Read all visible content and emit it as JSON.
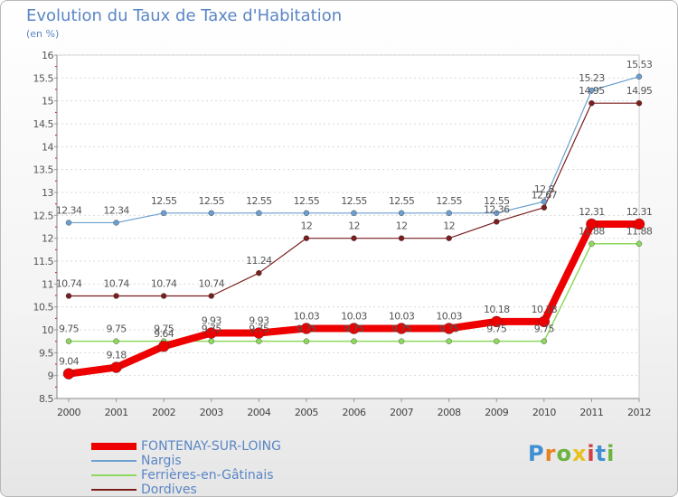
{
  "header": {
    "title": "Evolution du Taux de Taxe d'Habitation",
    "subtitle": "(en %)"
  },
  "colors": {
    "FONTENAY-SUR-LOING": "#ee0000",
    "Nargis": "#6a9fd0",
    "Ferrières-en-Gâtinais": "#8ed85e",
    "Dordives": "#7a1e1e"
  },
  "logo": {
    "letters": [
      "P",
      "r",
      "o",
      "x",
      "i",
      "t",
      "i"
    ],
    "colors": [
      "#3f8fd2",
      "#e8821e",
      "#6db33f",
      "#e8c21e",
      "#d23f3f",
      "#3f8fd2",
      "#6db33f"
    ]
  },
  "chart_data": {
    "type": "line",
    "title": "Evolution du Taux de Taxe d'Habitation",
    "ylabel": "(en %)",
    "xlabel": "",
    "ylim": [
      8.5,
      16
    ],
    "yticks": [
      "8.5",
      "9",
      "9.5",
      "10",
      "10.5",
      "11",
      "11.5",
      "12",
      "12.5",
      "13",
      "13.5",
      "14",
      "14.5",
      "15",
      "15.5",
      "16"
    ],
    "categories": [
      "2000",
      "2001",
      "2002",
      "2003",
      "2004",
      "2005",
      "2006",
      "2007",
      "2008",
      "2009",
      "2010",
      "2011",
      "2012"
    ],
    "series": [
      {
        "name": "Dordives",
        "values": [
          10.74,
          10.74,
          10.74,
          10.74,
          11.24,
          12,
          12,
          12,
          12,
          12.36,
          12.67,
          14.95,
          14.95
        ],
        "labels": [
          "10.74",
          "10.74",
          "10.74",
          "10.74",
          "11.24",
          "12",
          "12",
          "12",
          "12",
          "12.36",
          "12.67",
          "14.95",
          "14.95"
        ]
      },
      {
        "name": "Ferrières-en-Gâtinais",
        "values": [
          9.75,
          9.75,
          9.75,
          9.75,
          9.75,
          9.75,
          9.75,
          9.75,
          9.75,
          9.75,
          9.75,
          11.88,
          11.88
        ],
        "labels": [
          "9.75",
          "9.75",
          "9.75",
          "9.75",
          "9.75",
          "9.75",
          "9.75",
          "9.75",
          "9.75",
          "9.75",
          "9.75",
          "11.88",
          "11.88"
        ]
      },
      {
        "name": "Nargis",
        "values": [
          12.34,
          12.34,
          12.55,
          12.55,
          12.55,
          12.55,
          12.55,
          12.55,
          12.55,
          12.55,
          12.8,
          15.23,
          15.53
        ],
        "labels": [
          "12.34",
          "12.34",
          "12.55",
          "12.55",
          "12.55",
          "12.55",
          "12.55",
          "12.55",
          "12.55",
          "12.55",
          "12.8",
          "15.23",
          "15.53"
        ]
      },
      {
        "name": "FONTENAY-SUR-LOING",
        "values": [
          9.04,
          9.18,
          9.64,
          9.93,
          9.93,
          10.03,
          10.03,
          10.03,
          10.03,
          10.18,
          10.18,
          12.31,
          12.31
        ],
        "labels": [
          "9.04",
          "9.18",
          "9.64",
          "9.93",
          "9.93",
          "10.03",
          "10.03",
          "10.03",
          "10.03",
          "10.18",
          "10.18",
          "12.31",
          "12.31"
        ]
      }
    ],
    "legend": [
      "FONTENAY-SUR-LOING",
      "Nargis",
      "Ferrières-en-Gâtinais",
      "Dordives"
    ],
    "legend_position": "bottom-left"
  }
}
